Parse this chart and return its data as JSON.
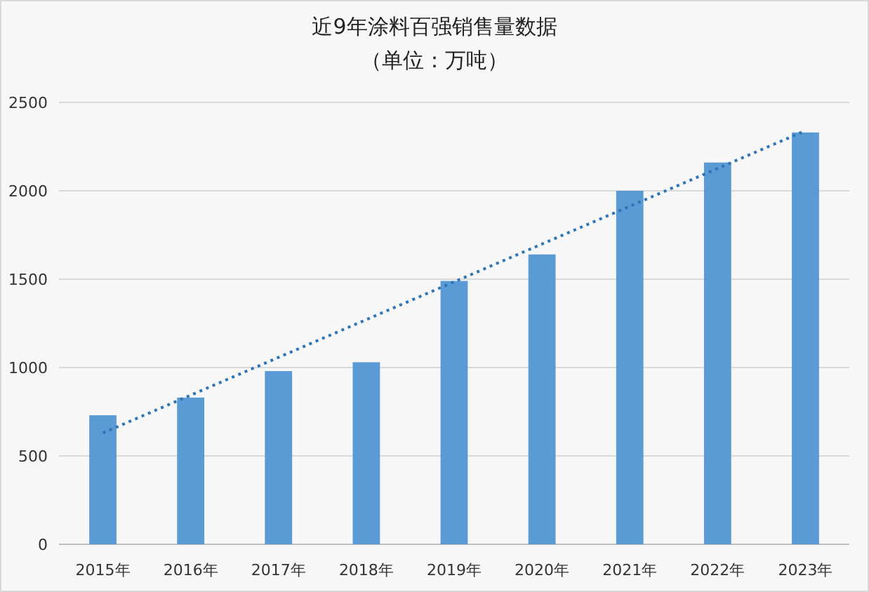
{
  "chart_data": {
    "type": "bar",
    "title": "近9年涂料百强销售量数据",
    "subtitle": "（单位：万吨）",
    "categories": [
      "2015年",
      "2016年",
      "2017年",
      "2018年",
      "2019年",
      "2020年",
      "2021年",
      "2022年",
      "2023年"
    ],
    "series": [
      {
        "color": "#5b9bd5",
        "values": [
          730,
          830,
          980,
          1030,
          1490,
          1640,
          2000,
          2160,
          2330
        ]
      },
      {
        "type": "line",
        "color": "#2e75b6",
        "line_style": "dotted",
        "x": [
          "2015年",
          "2023年"
        ],
        "values": [
          630,
          2340
        ]
      }
    ],
    "ylim": [
      0,
      2500
    ],
    "yticks": [
      0,
      500,
      1000,
      1500,
      2000,
      2500
    ],
    "grid": "y"
  }
}
